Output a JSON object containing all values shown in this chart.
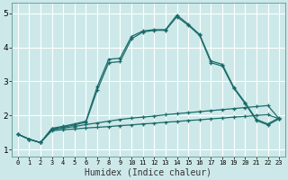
{
  "xlabel": "Humidex (Indice chaleur)",
  "xlim": [
    -0.5,
    23.5
  ],
  "ylim": [
    0.8,
    5.3
  ],
  "yticks": [
    1,
    2,
    3,
    4,
    5
  ],
  "xticks": [
    0,
    1,
    2,
    3,
    4,
    5,
    6,
    7,
    8,
    9,
    10,
    11,
    12,
    13,
    14,
    15,
    16,
    17,
    18,
    19,
    20,
    21,
    22,
    23
  ],
  "bg_color": "#cde8e8",
  "grid_color": "#ffffff",
  "line_color": "#1a6b6b",
  "lines": [
    {
      "x": [
        0,
        1,
        2,
        3,
        4,
        5,
        6,
        7,
        8,
        9,
        10,
        11,
        12,
        13,
        14,
        15,
        16,
        17,
        18,
        19,
        20,
        21,
        22,
        23
      ],
      "y": [
        1.45,
        1.3,
        1.2,
        1.55,
        1.58,
        1.6,
        1.63,
        1.65,
        1.67,
        1.7,
        1.72,
        1.75,
        1.77,
        1.8,
        1.82,
        1.85,
        1.87,
        1.9,
        1.92,
        1.95,
        1.97,
        2.0,
        2.02,
        1.9
      ]
    },
    {
      "x": [
        0,
        1,
        2,
        3,
        4,
        5,
        6,
        7,
        8,
        9,
        10,
        11,
        12,
        13,
        14,
        15,
        16,
        17,
        18,
        19,
        20,
        21,
        22,
        23
      ],
      "y": [
        1.45,
        1.3,
        1.2,
        1.58,
        1.63,
        1.67,
        1.73,
        1.78,
        1.83,
        1.88,
        1.92,
        1.95,
        1.98,
        2.02,
        2.05,
        2.08,
        2.11,
        2.14,
        2.17,
        2.2,
        2.23,
        2.26,
        2.29,
        1.9
      ]
    },
    {
      "x": [
        0,
        1,
        2,
        3,
        4,
        5,
        6,
        7,
        8,
        9,
        10,
        11,
        12,
        13,
        14,
        15,
        16,
        17,
        18,
        19,
        20,
        21,
        22,
        23
      ],
      "y": [
        1.45,
        1.3,
        1.2,
        1.6,
        1.65,
        1.72,
        1.8,
        2.75,
        3.55,
        3.58,
        4.25,
        4.45,
        4.5,
        4.5,
        4.9,
        4.65,
        4.35,
        3.55,
        3.45,
        2.8,
        2.35,
        1.85,
        1.72,
        1.9
      ]
    },
    {
      "x": [
        0,
        1,
        2,
        3,
        4,
        5,
        6,
        7,
        8,
        9,
        10,
        11,
        12,
        13,
        14,
        15,
        16,
        17,
        18,
        19,
        20,
        21,
        22,
        23
      ],
      "y": [
        1.45,
        1.3,
        1.2,
        1.62,
        1.68,
        1.75,
        1.83,
        2.85,
        3.65,
        3.68,
        4.32,
        4.48,
        4.52,
        4.52,
        4.95,
        4.68,
        4.38,
        3.6,
        3.5,
        2.83,
        2.38,
        1.88,
        1.75,
        1.93
      ]
    }
  ]
}
